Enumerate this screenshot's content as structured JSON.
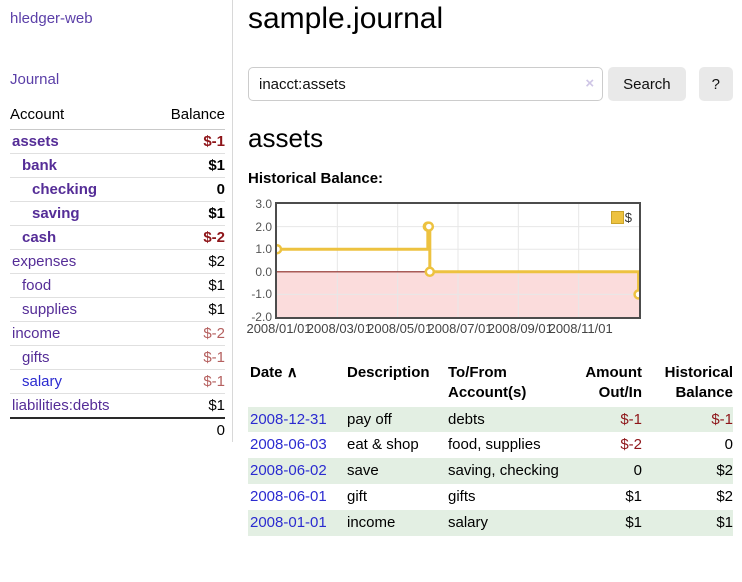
{
  "sidebar": {
    "brand": "hledger-web",
    "journal_label": "Journal",
    "accounts": {
      "headers": {
        "account": "Account",
        "balance": "Balance"
      },
      "rows": [
        {
          "label": "assets",
          "indent": 1,
          "bold": true,
          "link_color": "purple",
          "balance": "$-1",
          "balance_style": "neg-dark"
        },
        {
          "label": "bank",
          "indent": 2,
          "bold": true,
          "link_color": "purple",
          "balance": "$1",
          "balance_style": ""
        },
        {
          "label": "checking",
          "indent": 3,
          "bold": true,
          "link_color": "purple",
          "balance": "0",
          "balance_style": ""
        },
        {
          "label": "saving",
          "indent": 3,
          "bold": true,
          "link_color": "purple",
          "balance": "$1",
          "balance_style": ""
        },
        {
          "label": "cash",
          "indent": 2,
          "bold": true,
          "link_color": "purple",
          "balance": "$-2",
          "balance_style": "neg-dark"
        },
        {
          "label": "expenses",
          "indent": 1,
          "bold": false,
          "link_color": "purple",
          "balance": "$2",
          "balance_style": ""
        },
        {
          "label": "food",
          "indent": 2,
          "bold": false,
          "link_color": "purple",
          "balance": "$1",
          "balance_style": ""
        },
        {
          "label": "supplies",
          "indent": 2,
          "bold": false,
          "link_color": "purple",
          "balance": "$1",
          "balance_style": ""
        },
        {
          "label": "income",
          "indent": 1,
          "bold": false,
          "link_color": "purple",
          "balance": "$-2",
          "balance_style": "neg-rose"
        },
        {
          "label": "gifts",
          "indent": 2,
          "bold": false,
          "link_color": "purple",
          "balance": "$-1",
          "balance_style": "neg-rose"
        },
        {
          "label": "salary",
          "indent": 2,
          "bold": false,
          "link_color": "blue",
          "balance": "$-1",
          "balance_style": "neg-rose"
        },
        {
          "label": "liabilities:debts",
          "indent": 1,
          "bold": false,
          "link_color": "purple",
          "balance": "$1",
          "balance_style": ""
        }
      ],
      "total": "0"
    }
  },
  "header": {
    "title": "sample.journal"
  },
  "search": {
    "value": "inacct:assets",
    "clear_icon": "×",
    "button_label": "Search",
    "help_label": "?"
  },
  "account_page": {
    "title": "assets",
    "chart_label": "Historical Balance:"
  },
  "chart_data": {
    "type": "line",
    "step": true,
    "series": [
      {
        "name": "$",
        "color": "#EDC240",
        "points": [
          [
            "2008-01-01",
            1
          ],
          [
            "2008-06-01",
            2
          ],
          [
            "2008-06-02",
            2
          ],
          [
            "2008-06-03",
            0
          ],
          [
            "2008-12-31",
            -1
          ]
        ]
      }
    ],
    "ylim": [
      -2,
      3
    ],
    "yticks": [
      "3.0",
      "2.0",
      "1.0",
      "0.0",
      "-1.0",
      "-2.0"
    ],
    "xticks": [
      "2008/01/01",
      "2008/03/01",
      "2008/05/01",
      "2008/07/01",
      "2008/09/01",
      "2008/11/01"
    ],
    "x_range_months": 12,
    "legend": "$",
    "legend_position": "top-right",
    "grid": true,
    "grid_color": "#e7e7e7",
    "negative_region_color": "#fbdcdc",
    "zero_line_color": "#8f2a25",
    "border_color": "#4c4c4c"
  },
  "register": {
    "headers": {
      "date": "Date",
      "sort_indicator": "∧",
      "description": "Description",
      "accounts": "To/From Account(s)",
      "amount": "Amount Out/In",
      "balance": "Historical Balance"
    },
    "rows": [
      {
        "date": "2008-12-31",
        "description": "pay off",
        "accounts": "debts",
        "amount": "$-1",
        "amount_style": "neg-dark",
        "balance": "$-1",
        "balance_style": "neg-dark",
        "shaded": true
      },
      {
        "date": "2008-06-03",
        "description": "eat & shop",
        "accounts": "food, supplies",
        "amount": "$-2",
        "amount_style": "neg-dark",
        "balance": "0",
        "balance_style": "",
        "shaded": false
      },
      {
        "date": "2008-06-02",
        "description": "save",
        "accounts": "saving, checking",
        "amount": "0",
        "amount_style": "",
        "balance": "$2",
        "balance_style": "",
        "shaded": true
      },
      {
        "date": "2008-06-01",
        "description": "gift",
        "accounts": "gifts",
        "amount": "$1",
        "amount_style": "",
        "balance": "$2",
        "balance_style": "",
        "shaded": false
      },
      {
        "date": "2008-01-01",
        "description": "income",
        "accounts": "salary",
        "amount": "$1",
        "amount_style": "",
        "balance": "$1",
        "balance_style": "",
        "shaded": true
      }
    ]
  },
  "colors": {
    "link_purple": "#552d97",
    "link_blue": "#2b2bd0",
    "negative_dark": "#8e1519",
    "negative_rose": "#b5605f",
    "row_shade_green": "#e3efe3",
    "series_yellow": "#EDC240"
  }
}
